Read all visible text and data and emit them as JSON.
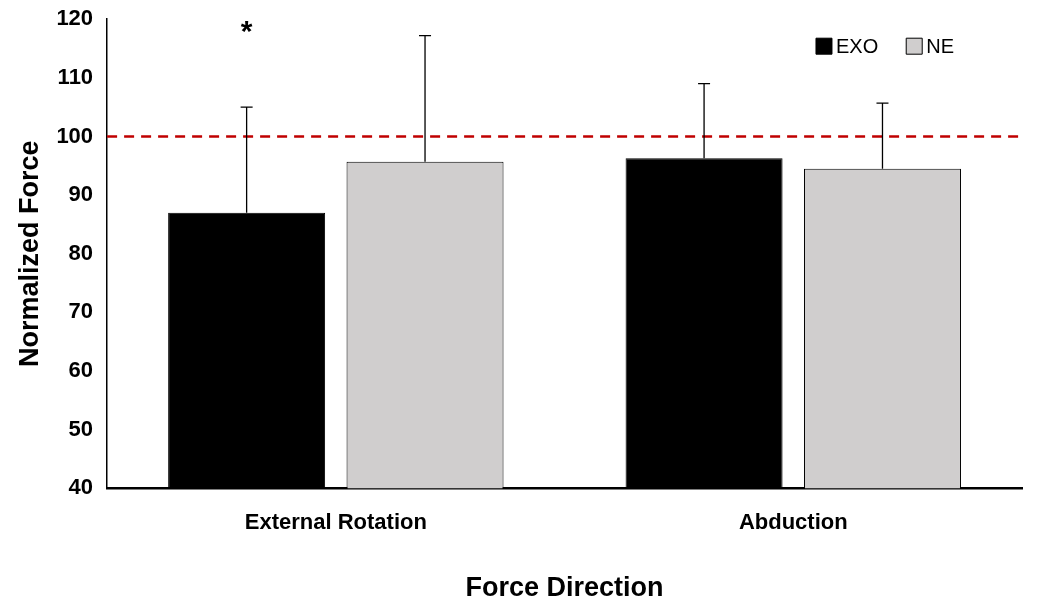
{
  "chart_data": {
    "type": "bar",
    "xlabel": "Force Direction",
    "ylabel": "Normalized Force",
    "categories": [
      "External Rotation",
      "Abduction"
    ],
    "series": [
      {
        "name": "EXO",
        "color": "#000000",
        "values": [
          87,
          96.3
        ],
        "errors": [
          [
            87,
            105
          ],
          [
            96.3,
            109
          ]
        ]
      },
      {
        "name": "NE",
        "color": "#d0cece",
        "values": [
          95.7,
          94.5
        ],
        "errors": [
          [
            95.7,
            117.2
          ],
          [
            94.5,
            105.7
          ]
        ]
      }
    ],
    "ylim": [
      40,
      120
    ],
    "yticks": [
      40,
      50,
      60,
      70,
      80,
      90,
      100,
      110,
      120
    ],
    "ref_lines": [
      {
        "axis": "y",
        "value": 100,
        "color": "#c00000",
        "line_style": "dashed"
      }
    ],
    "annotations": [
      "*"
    ],
    "legend": "top right",
    "grid": false
  }
}
